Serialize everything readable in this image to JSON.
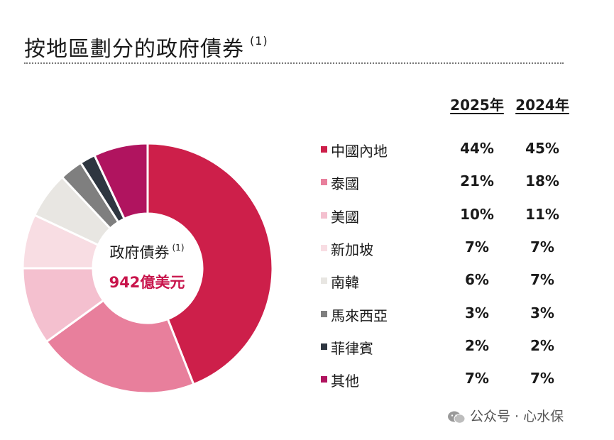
{
  "title": "按地區劃分的政府債券",
  "title_note": "(1)",
  "center": {
    "label": "政府債券",
    "note": "(1)",
    "value": "942億美元"
  },
  "year_headers": [
    "2025年",
    "2024年"
  ],
  "watermark": "公众号 · 心水保",
  "chart_data": {
    "type": "pie",
    "title": "按地區劃分的政府債券",
    "categories": [
      "中國內地",
      "泰國",
      "美國",
      "新加坡",
      "南韓",
      "馬來西亞",
      "菲律賓",
      "其他"
    ],
    "series": [
      {
        "name": "2025年",
        "values": [
          44,
          21,
          10,
          7,
          6,
          3,
          2,
          7
        ]
      },
      {
        "name": "2024年",
        "values": [
          45,
          18,
          11,
          7,
          7,
          3,
          2,
          7
        ]
      }
    ],
    "value_labels_2025": [
      "44%",
      "21%",
      "10%",
      "7%",
      "6%",
      "3%",
      "2%",
      "7%"
    ],
    "value_labels_2024": [
      "45%",
      "18%",
      "11%",
      "7%",
      "7%",
      "3%",
      "2%",
      "7%"
    ],
    "colors": [
      "#cd1f4a",
      "#e87f9c",
      "#f4c0cf",
      "#f8dde3",
      "#e8e6e2",
      "#7f7f7f",
      "#2e3640",
      "#b0145f"
    ],
    "donut_series": "2025年",
    "legend_position": "right"
  }
}
